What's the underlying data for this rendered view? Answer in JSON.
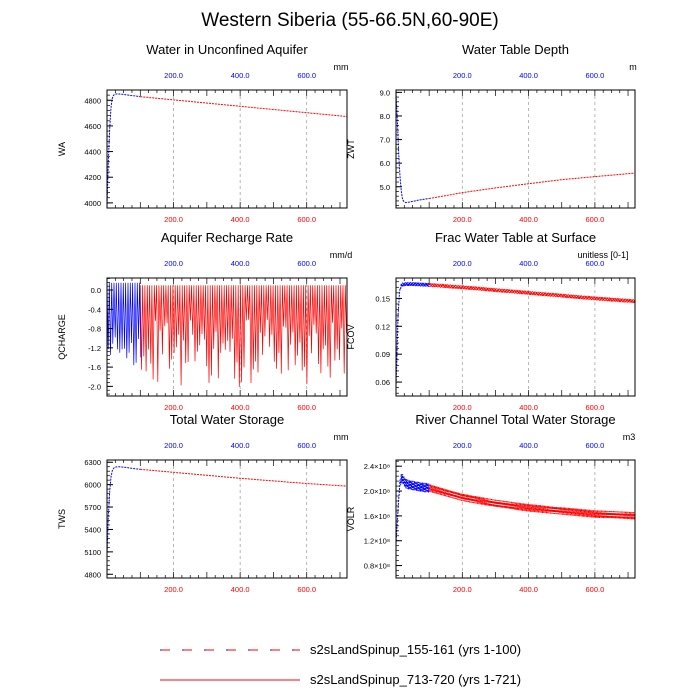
{
  "title": "Western Siberia (55-66.5N,60-90E)",
  "colors": {
    "spinup_early": "#0000ff",
    "spinup_late": "#ff0000",
    "grid": "#999999"
  },
  "legend": [
    {
      "label": "s2sLandSpinup_155-161 (yrs 1-100)",
      "color": "#0000ff",
      "style": "dashed"
    },
    {
      "label": "s2sLandSpinup_713-720 (yrs 1-721)",
      "color": "#ff0000",
      "style": "solid"
    }
  ],
  "chart_data": [
    {
      "id": "wa",
      "type": "line",
      "title": "Water in Unconfined Aquifer",
      "units": "mm",
      "ylabel": "WA",
      "xlim": [
        0,
        721
      ],
      "ylim": [
        3960,
        4880
      ],
      "yticks": [
        4000,
        4200,
        4400,
        4600,
        4800
      ],
      "ytick_labels": [
        "4000",
        "4200",
        "4400",
        "4600",
        "4800"
      ],
      "top_xticks": [
        200,
        400,
        600
      ],
      "top_xtick_labels": [
        "200.0",
        "400.0",
        "600.0"
      ],
      "bottom_xticks": [
        200,
        400,
        600
      ],
      "bottom_xtick_labels": [
        "200.0",
        "400.0",
        "600.0"
      ],
      "series": [
        {
          "name": "s2sLandSpinup_155-161 (yrs 1-100)",
          "x": [
            0,
            5,
            10,
            15,
            20,
            25,
            30,
            40,
            50,
            60,
            70,
            80,
            90,
            100
          ],
          "y": [
            3970,
            4400,
            4700,
            4810,
            4840,
            4848,
            4850,
            4848,
            4846,
            4842,
            4838,
            4835,
            4832,
            4828
          ]
        },
        {
          "name": "s2sLandSpinup_713-720 (yrs 1-721)",
          "x": [
            100,
            200,
            300,
            400,
            500,
            600,
            721
          ],
          "y": [
            4828,
            4803,
            4778,
            4753,
            4728,
            4703,
            4673
          ]
        }
      ]
    },
    {
      "id": "zwt",
      "type": "line",
      "title": "Water Table Depth",
      "units": "m",
      "ylabel": "ZWT",
      "xlim": [
        0,
        721
      ],
      "ylim": [
        4.1,
        9.1
      ],
      "yticks": [
        5,
        6,
        7,
        8,
        9
      ],
      "ytick_labels": [
        "5.0",
        "6.0",
        "7.0",
        "8.0",
        "9.0"
      ],
      "top_xticks": [
        200,
        400,
        600
      ],
      "top_xtick_labels": [
        "200.0",
        "400.0",
        "600.0"
      ],
      "bottom_xticks": [
        200,
        400,
        600
      ],
      "bottom_xtick_labels": [
        "200.0",
        "400.0",
        "600.0"
      ],
      "series": [
        {
          "name": "s2sLandSpinup_155-161 (yrs 1-100)",
          "x": [
            0,
            3,
            6,
            10,
            15,
            20,
            25,
            30,
            40,
            50,
            60,
            70,
            80,
            90,
            100
          ],
          "y": [
            9.0,
            8.3,
            7.0,
            5.8,
            4.9,
            4.45,
            4.35,
            4.33,
            4.35,
            4.38,
            4.41,
            4.44,
            4.46,
            4.48,
            4.5
          ]
        },
        {
          "name": "s2sLandSpinup_713-720 (yrs 1-721)",
          "x": [
            100,
            200,
            300,
            400,
            500,
            600,
            721
          ],
          "y": [
            4.5,
            4.75,
            4.95,
            5.13,
            5.3,
            5.43,
            5.58
          ]
        }
      ]
    },
    {
      "id": "qcharge",
      "type": "line",
      "title": "Aquifer Recharge Rate",
      "units": "mm/d",
      "ylabel": "QCHARGE",
      "xlim": [
        0,
        721
      ],
      "ylim": [
        -2.2,
        0.25
      ],
      "yticks": [
        -2.0,
        -1.6,
        -1.2,
        -0.8,
        -0.4,
        0.0
      ],
      "ytick_labels": [
        "-2.0",
        "-1.6",
        "-1.2",
        "-0.8",
        "-0.4",
        "0.0"
      ],
      "top_xticks": [
        200,
        400,
        600
      ],
      "top_xtick_labels": [
        "200.0",
        "400.0",
        "600.0"
      ],
      "bottom_xticks": [
        200,
        400,
        600
      ],
      "bottom_xtick_labels": [
        "200.0",
        "400.0",
        "600.0"
      ],
      "oscillation": {
        "period": 7,
        "upper": 0.1,
        "lower_mean": -1.1,
        "lower_spread": 0.5
      },
      "series": [
        {
          "name": "s2sLandSpinup_155-161 (yrs 1-100)",
          "x_range": [
            0,
            100
          ],
          "upper": 0.15,
          "lower_min": -1.6,
          "lower_max": -0.9
        },
        {
          "name": "s2sLandSpinup_713-720 (yrs 1-721)",
          "x_range": [
            100,
            721
          ],
          "upper": 0.1,
          "lower_min": -2.05,
          "lower_max": -0.6
        }
      ]
    },
    {
      "id": "fcov",
      "type": "line",
      "title": "Frac Water Table at Surface",
      "units": "unitless [0-1]",
      "ylabel": "FCOV",
      "xlim": [
        0,
        721
      ],
      "ylim": [
        0.045,
        0.172
      ],
      "yticks": [
        0.06,
        0.09,
        0.12,
        0.15
      ],
      "ytick_labels": [
        "0.06",
        "0.09",
        "0.12",
        "0.15"
      ],
      "top_xticks": [
        200,
        400,
        600
      ],
      "top_xtick_labels": [
        "200.0",
        "400.0",
        "600.0"
      ],
      "bottom_xticks": [
        200,
        400,
        600
      ],
      "bottom_xtick_labels": [
        "200.0",
        "400.0",
        "600.0"
      ],
      "series": [
        {
          "name": "s2sLandSpinup_155-161 (yrs 1-100)",
          "x": [
            0,
            3,
            6,
            10,
            15,
            20,
            30,
            50,
            70,
            100
          ],
          "y": [
            0.055,
            0.09,
            0.13,
            0.155,
            0.164,
            0.165,
            0.1655,
            0.1655,
            0.165,
            0.1645
          ],
          "amplitude": 0.004
        },
        {
          "name": "s2sLandSpinup_713-720 (yrs 1-721)",
          "x": [
            100,
            200,
            300,
            400,
            500,
            600,
            721
          ],
          "y": [
            0.1645,
            0.162,
            0.159,
            0.156,
            0.153,
            0.15,
            0.147
          ],
          "amplitude": 0.004
        }
      ]
    },
    {
      "id": "tws",
      "type": "line",
      "title": "Total Water Storage",
      "units": "mm",
      "ylabel": "TWS",
      "xlim": [
        0,
        721
      ],
      "ylim": [
        4750,
        6330
      ],
      "yticks": [
        4800,
        5100,
        5400,
        5700,
        6000,
        6300
      ],
      "ytick_labels": [
        "4800",
        "5100",
        "5400",
        "5700",
        "6000",
        "6300"
      ],
      "top_xticks": [
        200,
        400,
        600
      ],
      "top_xtick_labels": [
        "200.0",
        "400.0",
        "600.0"
      ],
      "bottom_xticks": [
        200,
        400,
        600
      ],
      "bottom_xtick_labels": [
        "200.0",
        "400.0",
        "600.0"
      ],
      "series": [
        {
          "name": "s2sLandSpinup_155-161 (yrs 1-100)",
          "x": [
            0,
            5,
            10,
            15,
            20,
            25,
            30,
            40,
            50,
            60,
            70,
            80,
            90,
            100
          ],
          "y": [
            5050,
            5700,
            6050,
            6180,
            6220,
            6235,
            6240,
            6238,
            6234,
            6228,
            6222,
            6216,
            6210,
            6205
          ]
        },
        {
          "name": "s2sLandSpinup_713-720 (yrs 1-721)",
          "x": [
            100,
            200,
            300,
            400,
            500,
            600,
            721
          ],
          "y": [
            6205,
            6165,
            6125,
            6085,
            6050,
            6015,
            5980
          ]
        }
      ]
    },
    {
      "id": "volr",
      "type": "line",
      "title": "River Channel Total Water Storage",
      "units": "m3",
      "ylabel": "VOLR",
      "xlim": [
        0,
        721
      ],
      "ylim": [
        0.6,
        2.5
      ],
      "y_multiplier": "x10^8",
      "yticks": [
        0.8,
        1.2,
        1.6,
        2.0,
        2.4
      ],
      "ytick_labels": [
        "0.8×10⁸",
        "1.2×10⁸",
        "1.6×10⁸",
        "2.0×10⁸",
        "2.4×10⁸"
      ],
      "top_xticks": [
        200,
        400,
        600
      ],
      "top_xtick_labels": [
        "200.0",
        "400.0",
        "600.0"
      ],
      "bottom_xticks": [
        200,
        400,
        600
      ],
      "bottom_xtick_labels": [
        "200.0",
        "400.0",
        "600.0"
      ],
      "series": [
        {
          "name": "s2sLandSpinup_155-161 (yrs 1-100)",
          "x": [
            0,
            5,
            10,
            15,
            20,
            25,
            30,
            40,
            60,
            80,
            100
          ],
          "y": [
            1.15,
            1.6,
            2.05,
            2.2,
            2.2,
            2.15,
            2.12,
            2.1,
            2.08,
            2.06,
            2.05
          ],
          "amplitude": 0.15
        },
        {
          "name": "s2sLandSpinup_713-720 (yrs 1-721)",
          "x": [
            100,
            200,
            300,
            400,
            500,
            600,
            721
          ],
          "y": [
            2.05,
            1.9,
            1.8,
            1.73,
            1.68,
            1.63,
            1.6
          ],
          "amplitude": 0.12
        }
      ]
    }
  ]
}
